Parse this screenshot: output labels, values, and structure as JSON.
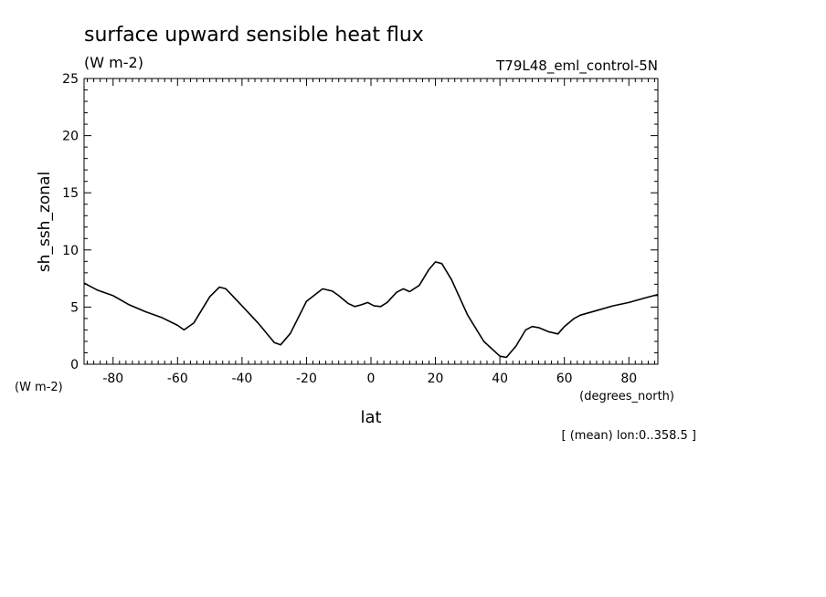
{
  "chart_data": {
    "type": "line",
    "title": "surface upward sensible heat flux",
    "units_label": "(W m-2)",
    "experiment": "T79L48_eml_control-5N",
    "ylabel": "sh_ssh_zonal",
    "y_units": "(W m-2)",
    "xlabel": "lat",
    "x_units": "(degrees_north)",
    "footnote": "[ (mean) lon:0..358.5 ]",
    "xlim": [
      -89,
      89
    ],
    "ylim": [
      0,
      25
    ],
    "x_ticks": [
      -80,
      -60,
      -40,
      -20,
      0,
      20,
      40,
      60,
      80
    ],
    "x_tick_labels": [
      "-80",
      "-60",
      "-40",
      "-20",
      "0",
      "20",
      "40",
      "60",
      "80"
    ],
    "y_ticks": [
      0,
      5,
      10,
      15,
      20,
      25
    ],
    "y_tick_labels": [
      "0",
      "5",
      "10",
      "15",
      "20",
      "25"
    ],
    "grid": false,
    "line_color": "#000000",
    "series": [
      {
        "x": [
          -89,
          -85,
          -80,
          -75,
          -70,
          -65,
          -60,
          -58,
          -55,
          -50,
          -47,
          -45,
          -40,
          -35,
          -30,
          -28,
          -25,
          -20,
          -15,
          -12,
          -10,
          -7,
          -5,
          -3,
          -1,
          0,
          1,
          3,
          5,
          8,
          10,
          12,
          15,
          18,
          20,
          22,
          25,
          30,
          35,
          40,
          42,
          45,
          48,
          50,
          52,
          55,
          58,
          60,
          63,
          65,
          70,
          75,
          80,
          85,
          89
        ],
        "y": [
          7.1,
          6.5,
          6.0,
          5.2,
          4.6,
          4.1,
          3.4,
          3.0,
          3.6,
          5.9,
          6.75,
          6.6,
          5.1,
          3.6,
          1.9,
          1.7,
          2.7,
          5.5,
          6.6,
          6.4,
          6.0,
          5.3,
          5.05,
          5.2,
          5.4,
          5.25,
          5.1,
          5.05,
          5.4,
          6.3,
          6.6,
          6.35,
          6.9,
          8.3,
          8.95,
          8.8,
          7.4,
          4.3,
          2.0,
          0.7,
          0.6,
          1.6,
          3.0,
          3.3,
          3.2,
          2.85,
          2.65,
          3.3,
          4.0,
          4.3,
          4.7,
          5.1,
          5.4,
          5.8,
          6.1
        ]
      }
    ]
  }
}
